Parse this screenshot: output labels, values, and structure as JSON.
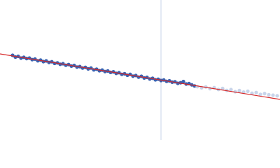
{
  "chart_data": {
    "type": "scatter",
    "xlim": [
      0,
      400
    ],
    "ylim": [
      0,
      200
    ],
    "series": [
      {
        "color": "#3b62b0",
        "x": [
          18,
          22,
          26,
          30,
          34,
          38,
          42,
          46,
          50,
          54,
          58,
          62,
          66,
          70,
          74,
          78,
          82,
          86,
          90,
          94,
          98,
          102,
          106,
          110,
          114,
          118,
          122,
          126,
          130,
          134,
          138,
          142,
          146,
          150,
          154,
          158,
          162,
          166,
          170,
          174,
          178,
          182,
          186,
          190,
          194,
          198,
          202,
          206,
          210,
          214,
          218,
          222,
          226,
          230,
          234,
          238,
          242,
          246,
          250,
          254,
          258,
          262,
          266,
          270,
          274,
          278
        ],
        "values": [
          121,
          118.5,
          119.5,
          117,
          118.2,
          116.4,
          117,
          114.8,
          115.6,
          113.2,
          114.2,
          112,
          113,
          110.8,
          111.8,
          109.5,
          110.2,
          108.2,
          109,
          106.8,
          107.8,
          105.6,
          106.5,
          104.2,
          104.9,
          102.8,
          103.8,
          101.6,
          102.8,
          100.2,
          101.2,
          99,
          99.9,
          97.8,
          98.6,
          96.6,
          97.4,
          95.2,
          96.2,
          93.8,
          94.6,
          92.5,
          93.8,
          91.2,
          92.2,
          89.8,
          91,
          88.6,
          89.5,
          87.2,
          88.2,
          86,
          86.8,
          85,
          85.8,
          83.8,
          84.5,
          82.6,
          83.2,
          81,
          81.8,
          83.5,
          80,
          80.6,
          78.8,
          77.2
        ]
      },
      {
        "color": "#c8d4ea",
        "x": [
          282,
          288,
          294,
          300,
          306,
          312,
          318,
          324,
          330,
          336,
          342,
          348,
          354,
          360,
          366,
          372,
          378,
          384,
          390,
          396
        ],
        "values": [
          76.2,
          74.6,
          75.8,
          73.4,
          74.8,
          72.2,
          73.6,
          70.8,
          72,
          69,
          70.6,
          68.4,
          69.6,
          66.8,
          67.8,
          65.2,
          66.4,
          64.6,
          64,
          63.2
        ]
      }
    ],
    "fit": {
      "color": "#d62728",
      "x": [
        0,
        400
      ],
      "values": [
        123,
        58
      ]
    },
    "vline": {
      "color": "#c8d4ea",
      "x": 230
    }
  }
}
